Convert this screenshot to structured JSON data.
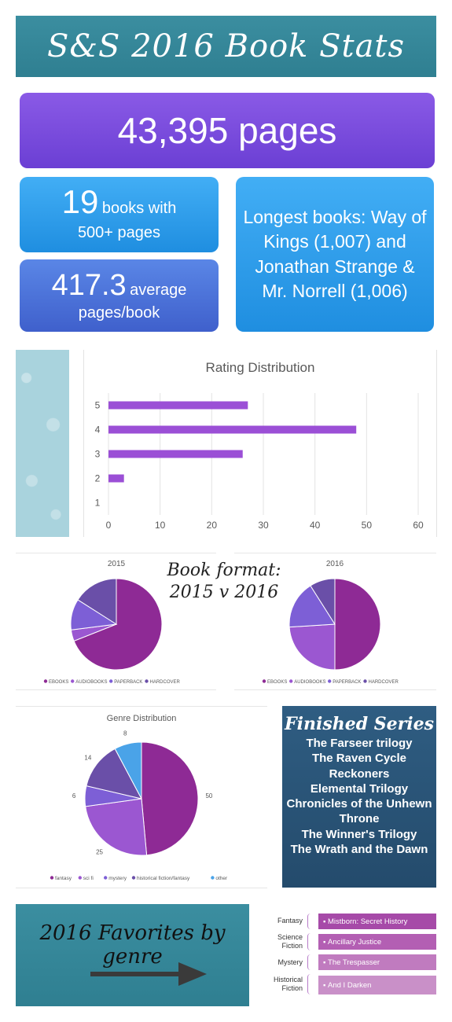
{
  "header": {
    "title": "S&S 2016 Book Stats"
  },
  "stats": {
    "total_pages": "43,395 pages",
    "books_500_count": "19",
    "books_500_text": "books with",
    "books_500_line2": "500+ pages",
    "avg_value": "417.3",
    "avg_text": "average",
    "avg_line2": "pages/book",
    "longest": "Longest books: Way of Kings (1,007) and Jonathan Strange & Mr. Norrell (1,006)"
  },
  "chart_data": [
    {
      "type": "bar",
      "title": "Rating Distribution",
      "categories": [
        "1",
        "2",
        "3",
        "4",
        "5"
      ],
      "values": [
        0,
        3,
        26,
        48,
        27
      ],
      "xlim": [
        0,
        60
      ],
      "xticks": [
        0,
        10,
        20,
        30,
        40,
        50,
        60
      ],
      "orientation": "horizontal",
      "color": "#9b4fd6",
      "grid": true
    },
    {
      "type": "pie",
      "title": "2015",
      "labels": [
        "EBOOKS",
        "AUDIOBOOKS",
        "PAPERBACK",
        "HARDCOVER"
      ],
      "values": [
        69,
        4,
        11,
        16
      ],
      "colors": [
        "#8e2a95",
        "#9b57d1",
        "#7d5fd6",
        "#6a4fa8"
      ],
      "legend": "bottom"
    },
    {
      "type": "pie",
      "title": "2016",
      "labels": [
        "EBOOKS",
        "AUDIOBOOKS",
        "PAPERBACK",
        "HARDCOVER"
      ],
      "values": [
        50,
        24,
        17,
        9
      ],
      "colors": [
        "#8e2a95",
        "#9b57d1",
        "#7d5fd6",
        "#6a4fa8"
      ],
      "legend": "bottom"
    },
    {
      "type": "pie",
      "title": "Genre Distribution",
      "labels": [
        "fantasy",
        "sci fi",
        "mystery",
        "historical fiction/fantasy",
        "other"
      ],
      "values": [
        50,
        25,
        6,
        14,
        8
      ],
      "data_labels": [
        "50",
        "25",
        "6",
        "14",
        "8"
      ],
      "colors": [
        "#8e2a95",
        "#9b57d1",
        "#7d5fd6",
        "#6a4fa8",
        "#4aa3e8"
      ],
      "legend": "bottom"
    }
  ],
  "format_title": {
    "line1": "Book format:",
    "line2": "2015 v 2016"
  },
  "series": {
    "title": "Finished Series",
    "items": [
      "The Farseer trilogy",
      "The Raven Cycle",
      "Reckoners",
      "Elemental Trilogy",
      "Chronicles of the Unhewn Throne",
      "The Winner's Trilogy",
      "The Wrath and the Dawn"
    ]
  },
  "favorites": {
    "title": "2016 Favorites by genre",
    "rows": [
      {
        "genre": "Fantasy",
        "book": "Mistborn: Secret History",
        "color": "#a64aa8"
      },
      {
        "genre": "Science Fiction",
        "book": "Ancillary Justice",
        "color": "#b35fb3"
      },
      {
        "genre": "Mystery",
        "book": "The Trespasser",
        "color": "#c07bbf"
      },
      {
        "genre": "Historical Fiction",
        "book": "And I Darken",
        "color": "#c990c8"
      }
    ]
  }
}
